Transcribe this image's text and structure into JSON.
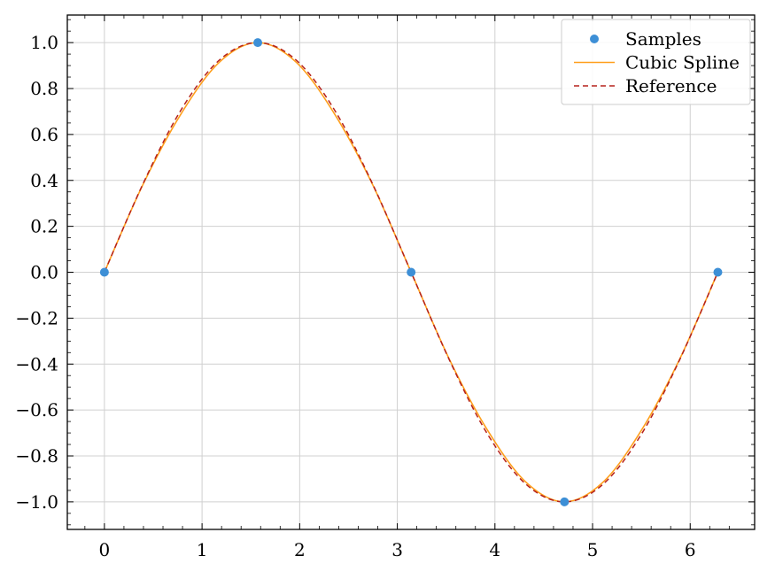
{
  "chart_data": {
    "type": "line",
    "title": "",
    "xlabel": "",
    "ylabel": "",
    "xlim": [
      -0.38,
      6.66
    ],
    "ylim": [
      -1.12,
      1.12
    ],
    "xticks": [
      0,
      1,
      2,
      3,
      4,
      5,
      6
    ],
    "xtick_labels": [
      "0",
      "1",
      "2",
      "3",
      "4",
      "5",
      "6"
    ],
    "yticks": [
      1.0,
      0.8,
      0.6,
      0.4,
      0.2,
      0.0,
      -0.2,
      -0.4,
      -0.6,
      -0.8,
      -1.0
    ],
    "ytick_labels": [
      "1.0",
      "0.8",
      "0.6",
      "0.4",
      "0.2",
      "0.0",
      "−0.2",
      "−0.4",
      "−0.6",
      "−0.8",
      "−1.0"
    ],
    "grid": true,
    "legend_position": "top-right",
    "series": [
      {
        "name": "Samples",
        "kind": "scatter",
        "color": "#3d8fd6",
        "x": [
          0,
          1.5708,
          3.1416,
          4.7124,
          6.2832
        ],
        "y": [
          0,
          1,
          0,
          -1,
          0
        ]
      },
      {
        "name": "Cubic Spline",
        "kind": "line",
        "color": "#ff9f1c",
        "dash": "solid",
        "x": [
          0,
          0.3927,
          0.7854,
          1.1781,
          1.5708,
          1.9635,
          2.3562,
          2.7489,
          3.1416,
          3.5343,
          3.927,
          4.3197,
          4.7124,
          5.1051,
          5.4978,
          5.8905,
          6.2832
        ],
        "y": [
          0,
          0.38,
          0.69,
          0.915,
          1.0,
          0.915,
          0.69,
          0.38,
          0,
          -0.38,
          -0.69,
          -0.915,
          -1.0,
          -0.915,
          -0.69,
          -0.38,
          0
        ]
      },
      {
        "name": "Reference",
        "kind": "line",
        "color": "#b5221b",
        "dash": "dashed",
        "x": [
          0,
          0.3927,
          0.7854,
          1.1781,
          1.5708,
          1.9635,
          2.3562,
          2.7489,
          3.1416,
          3.5343,
          3.927,
          4.3197,
          4.7124,
          5.1051,
          5.4978,
          5.8905,
          6.2832
        ],
        "y": [
          0,
          0.3827,
          0.7071,
          0.9239,
          1.0,
          0.9239,
          0.7071,
          0.3827,
          0,
          -0.3827,
          -0.7071,
          -0.9239,
          -1.0,
          -0.9239,
          -0.7071,
          -0.3827,
          0
        ]
      }
    ]
  }
}
